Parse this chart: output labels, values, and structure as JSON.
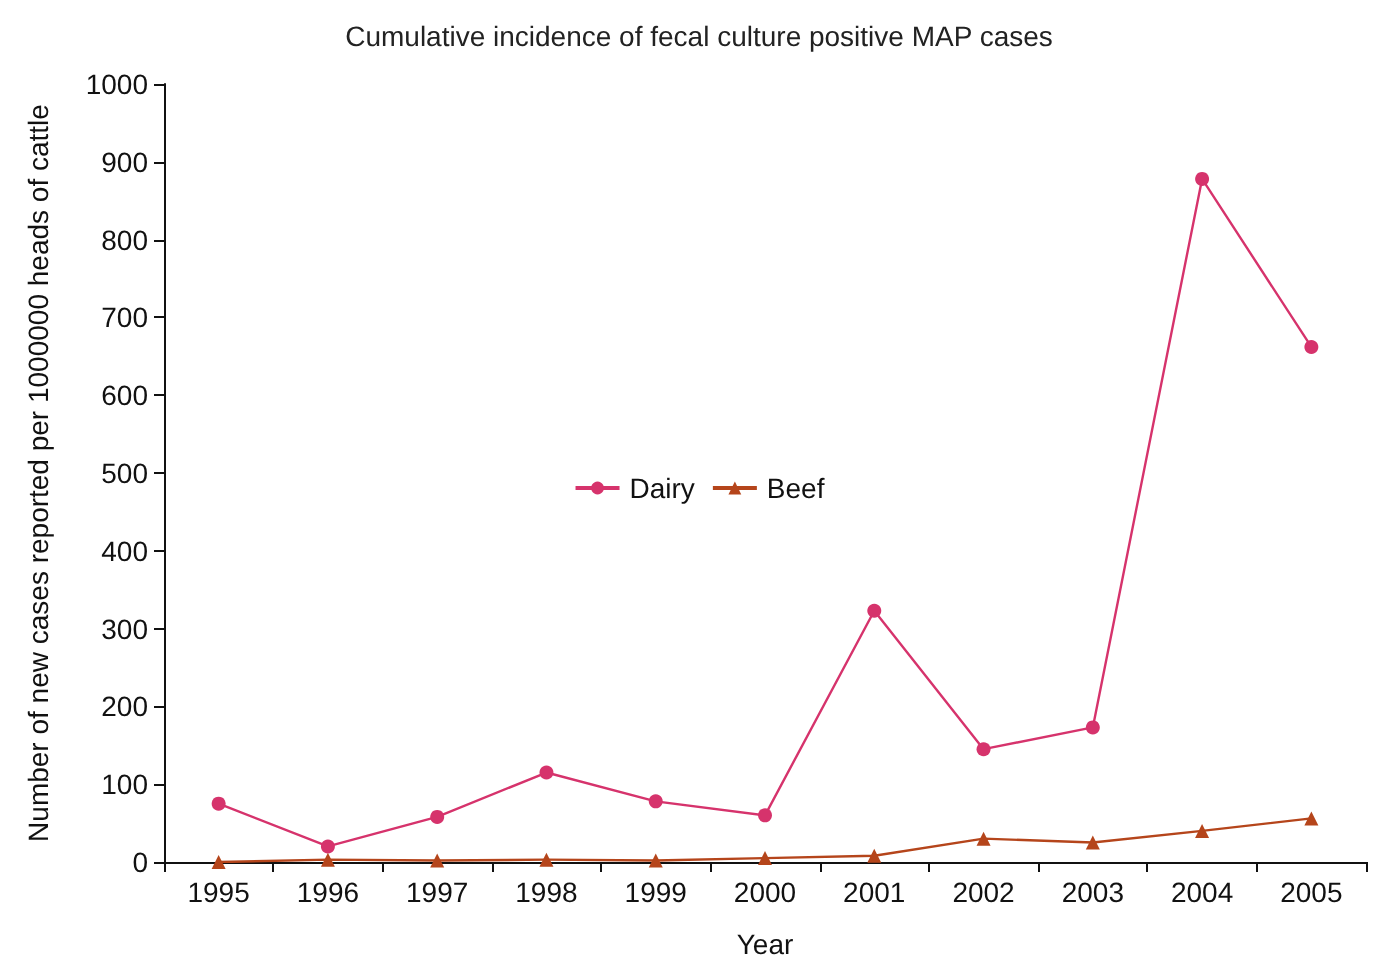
{
  "chart_data": {
    "type": "line",
    "title": "Cumulative incidence of fecal culture positive MAP cases",
    "xlabel": "Year",
    "ylabel": "Number of new cases reported per 1000000 heads of cattle",
    "categories": [
      "1995",
      "1996",
      "1997",
      "1998",
      "1999",
      "2000",
      "2001",
      "2002",
      "2003",
      "2004",
      "2005"
    ],
    "series": [
      {
        "name": "Dairy",
        "color": "#d6336c",
        "marker": "circle",
        "values": [
          75,
          20,
          58,
          115,
          78,
          60,
          323,
          145,
          173,
          878,
          662
        ]
      },
      {
        "name": "Beef",
        "color": "#b5451b",
        "marker": "triangle",
        "values": [
          0,
          3,
          2,
          3,
          2,
          5,
          8,
          30,
          25,
          40,
          56
        ]
      }
    ],
    "ylim": [
      0,
      1000
    ],
    "yticks": [
      0,
      100,
      200,
      300,
      400,
      500,
      600,
      700,
      800,
      900,
      1000
    ],
    "grid": false,
    "legend": "center"
  }
}
